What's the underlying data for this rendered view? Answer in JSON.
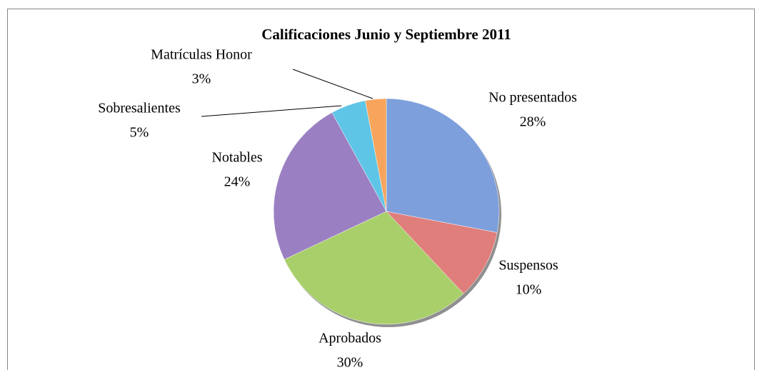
{
  "chart_data": {
    "type": "pie",
    "title": "Calificaciones Junio y Septiembre 2011",
    "categories": [
      "No presentados",
      "Suspensos",
      "Aprobados",
      "Notables",
      "Sobresalientes",
      "Matrículas Honor"
    ],
    "values": [
      28,
      10,
      30,
      24,
      5,
      3
    ],
    "value_labels": [
      "28%",
      "10%",
      "30%",
      "24%",
      "5%",
      "3%"
    ],
    "colors": [
      "#7d9fdc",
      "#e07e7c",
      "#a9cf6b",
      "#9a80c2",
      "#5fc5e6",
      "#f7a55c"
    ]
  }
}
